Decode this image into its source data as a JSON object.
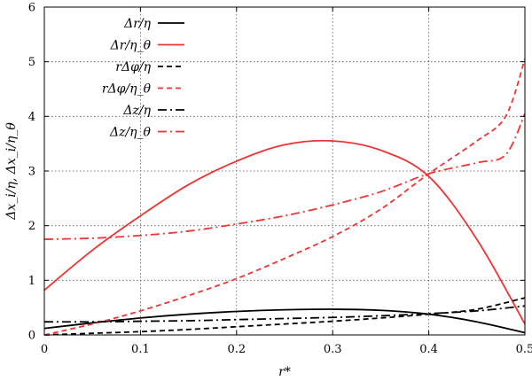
{
  "chart_data": {
    "type": "line",
    "title": "",
    "xlabel": "r*",
    "ylabel": "Δx_i/η, Δx_i/η_θ",
    "xlim": [
      0,
      0.5
    ],
    "ylim": [
      0,
      6
    ],
    "xticks": [
      0,
      0.1,
      0.2,
      0.3,
      0.4,
      0.5
    ],
    "xtick_labels": [
      "0",
      "0.1",
      "0.2",
      "0.3",
      "0.4",
      "0.5"
    ],
    "yticks": [
      0,
      1,
      2,
      3,
      4,
      5,
      6
    ],
    "ytick_labels": [
      "0",
      "1",
      "2",
      "3",
      "4",
      "5",
      "6"
    ],
    "grid": true,
    "legend_position": "top-left",
    "series": [
      {
        "name": "Δr/η",
        "color": "#000000",
        "dash": "solid",
        "x": [
          0,
          0.05,
          0.1,
          0.15,
          0.2,
          0.25,
          0.3,
          0.35,
          0.4,
          0.45,
          0.5
        ],
        "y": [
          0.12,
          0.22,
          0.31,
          0.38,
          0.43,
          0.46,
          0.47,
          0.45,
          0.38,
          0.24,
          0.04
        ]
      },
      {
        "name": "Δr/η_θ",
        "color": "#ee3333",
        "dash": "solid",
        "x": [
          0,
          0.05,
          0.1,
          0.15,
          0.2,
          0.25,
          0.3,
          0.35,
          0.4,
          0.45,
          0.5
        ],
        "y": [
          0.82,
          1.55,
          2.18,
          2.75,
          3.18,
          3.48,
          3.55,
          3.38,
          2.9,
          1.75,
          0.2
        ]
      },
      {
        "name": "rΔφ/η",
        "color": "#000000",
        "dash": "dashed",
        "x": [
          0,
          0.05,
          0.1,
          0.15,
          0.2,
          0.25,
          0.3,
          0.35,
          0.4,
          0.45,
          0.5
        ],
        "y": [
          0.0,
          0.03,
          0.06,
          0.1,
          0.15,
          0.2,
          0.25,
          0.31,
          0.38,
          0.47,
          0.68
        ]
      },
      {
        "name": "rΔφ/η_θ",
        "color": "#ee3333",
        "dash": "dashed",
        "x": [
          0,
          0.05,
          0.1,
          0.15,
          0.2,
          0.25,
          0.3,
          0.35,
          0.4,
          0.45,
          0.48,
          0.5
        ],
        "y": [
          0.0,
          0.2,
          0.44,
          0.72,
          1.03,
          1.4,
          1.8,
          2.3,
          2.95,
          3.55,
          4.0,
          5.05
        ]
      },
      {
        "name": "Δz/η",
        "color": "#000000",
        "dash": "dashdot",
        "x": [
          0,
          0.05,
          0.1,
          0.15,
          0.2,
          0.25,
          0.3,
          0.35,
          0.4,
          0.45,
          0.5
        ],
        "y": [
          0.24,
          0.24,
          0.25,
          0.26,
          0.28,
          0.3,
          0.32,
          0.35,
          0.39,
          0.44,
          0.53
        ]
      },
      {
        "name": "Δz/η_θ",
        "color": "#ee3333",
        "dash": "dashdot",
        "x": [
          0,
          0.05,
          0.1,
          0.15,
          0.2,
          0.25,
          0.3,
          0.35,
          0.4,
          0.45,
          0.48,
          0.5
        ],
        "y": [
          1.75,
          1.77,
          1.82,
          1.9,
          2.03,
          2.18,
          2.38,
          2.62,
          2.95,
          3.15,
          3.3,
          4.05
        ]
      }
    ]
  }
}
